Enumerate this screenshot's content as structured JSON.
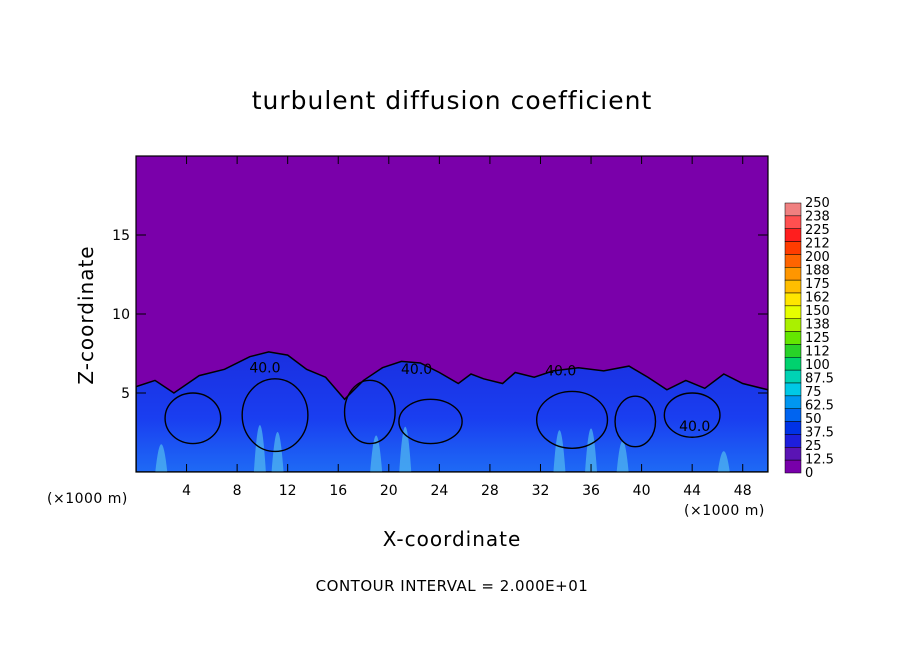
{
  "chart_data": {
    "type": "heatmap",
    "title": "turbulent diffusion coefficient",
    "xlabel": "X-coordinate",
    "ylabel": "Z-coordinate",
    "x_unit_label": "(×1000 m)",
    "xlim": [
      0,
      50
    ],
    "ylim": [
      0,
      20
    ],
    "x_ticks": [
      4,
      8,
      12,
      16,
      20,
      24,
      28,
      32,
      36,
      40,
      44,
      48
    ],
    "y_ticks": [
      5,
      10,
      15
    ],
    "contour_interval_text": "CONTOUR INTERVAL = 2.000E+01",
    "contour_labels": [
      {
        "text": "40.0",
        "x": 10.2,
        "z": 6.3
      },
      {
        "text": "40.0",
        "x": 22.2,
        "z": 6.2
      },
      {
        "text": "40.0",
        "x": 33.6,
        "z": 6.1
      },
      {
        "text": "40.0",
        "x": 44.2,
        "z": 2.6
      }
    ],
    "turbulent_layer_top_km": [
      [
        0.0,
        5.4
      ],
      [
        1.5,
        5.8
      ],
      [
        3.0,
        5.0
      ],
      [
        5.0,
        6.1
      ],
      [
        7.0,
        6.5
      ],
      [
        9.0,
        7.3
      ],
      [
        10.5,
        7.6
      ],
      [
        12.0,
        7.4
      ],
      [
        13.5,
        6.5
      ],
      [
        15.0,
        6.0
      ],
      [
        16.5,
        4.6
      ],
      [
        18.0,
        5.8
      ],
      [
        19.5,
        6.6
      ],
      [
        21.0,
        7.0
      ],
      [
        22.5,
        6.9
      ],
      [
        24.0,
        6.3
      ],
      [
        25.5,
        5.6
      ],
      [
        26.5,
        6.2
      ],
      [
        27.5,
        5.9
      ],
      [
        29.0,
        5.6
      ],
      [
        30.0,
        6.3
      ],
      [
        31.5,
        6.0
      ],
      [
        33.0,
        6.4
      ],
      [
        35.0,
        6.6
      ],
      [
        37.0,
        6.4
      ],
      [
        39.0,
        6.7
      ],
      [
        40.5,
        6.0
      ],
      [
        42.0,
        5.2
      ],
      [
        43.5,
        5.8
      ],
      [
        45.0,
        5.3
      ],
      [
        46.5,
        6.2
      ],
      [
        48.0,
        5.6
      ],
      [
        50.0,
        5.2
      ]
    ],
    "colorbar": {
      "labels": [
        "250",
        "238",
        "225",
        "212",
        "200",
        "188",
        "175",
        "162",
        "150",
        "138",
        "125",
        "112",
        "100",
        "87.5",
        "75",
        "62.5",
        "50",
        "37.5",
        "25",
        "12.5",
        "0"
      ],
      "colors": [
        "#f08080",
        "#ff5050",
        "#ff1e1e",
        "#ff3c00",
        "#ff6400",
        "#ff9600",
        "#ffbe00",
        "#ffe600",
        "#e6ff00",
        "#aaf000",
        "#64e600",
        "#28d228",
        "#00d26e",
        "#00d2b4",
        "#00c8e6",
        "#0096f0",
        "#0064f0",
        "#0032e6",
        "#1e1edc",
        "#5a14b4",
        "#7800aa"
      ]
    },
    "background_color": "#7a00aa"
  }
}
